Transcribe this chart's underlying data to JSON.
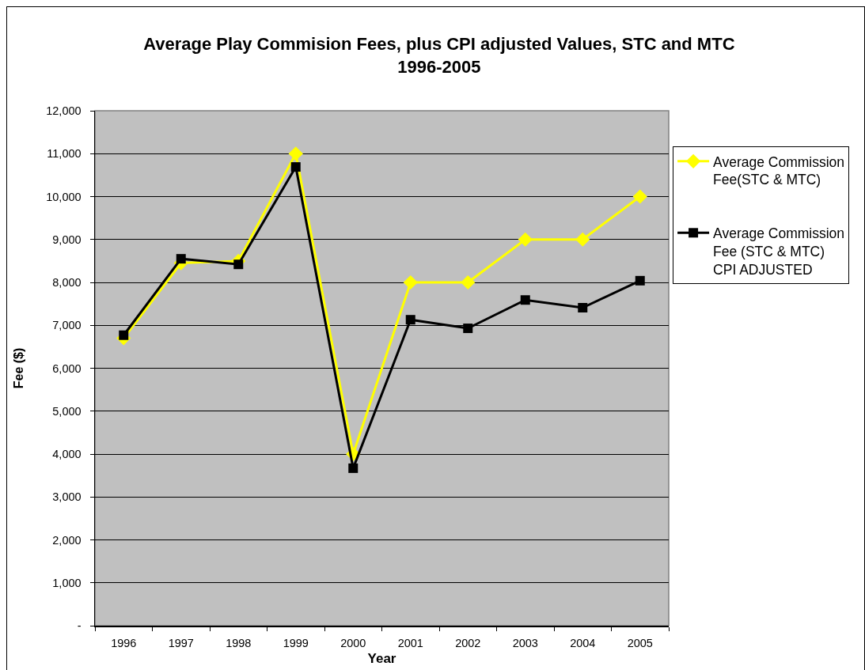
{
  "chart_data": {
    "type": "line",
    "title": "Average Play Commision Fees, plus CPI adjusted Values, STC and MTC\n1996-2005",
    "xlabel": "Year",
    "ylabel": "Fee ($)",
    "categories": [
      "1996",
      "1997",
      "1998",
      "1999",
      "2000",
      "2001",
      "2002",
      "2003",
      "2004",
      "2005"
    ],
    "series": [
      {
        "name": "Average Commission Fee(STC & MTC)",
        "color": "#ffff00",
        "marker": "diamond",
        "values": [
          6700,
          8450,
          8500,
          11000,
          4000,
          8000,
          8000,
          9000,
          9000,
          10000
        ]
      },
      {
        "name": "Average Commission Fee (STC & MTC) CPI ADJUSTED",
        "color": "#000000",
        "marker": "square",
        "values": [
          6770,
          8550,
          8420,
          10690,
          3670,
          7130,
          6930,
          7590,
          7410,
          8040
        ]
      }
    ],
    "ylim": [
      0,
      12000
    ],
    "yticks": [
      {
        "value": 0,
        "label": "-"
      },
      {
        "value": 1000,
        "label": "1,000"
      },
      {
        "value": 2000,
        "label": "2,000"
      },
      {
        "value": 3000,
        "label": "3,000"
      },
      {
        "value": 4000,
        "label": "4,000"
      },
      {
        "value": 5000,
        "label": "5,000"
      },
      {
        "value": 6000,
        "label": "6,000"
      },
      {
        "value": 7000,
        "label": "7,000"
      },
      {
        "value": 8000,
        "label": "8,000"
      },
      {
        "value": 9000,
        "label": "9,000"
      },
      {
        "value": 10000,
        "label": "10,000"
      },
      {
        "value": 11000,
        "label": "11,000"
      },
      {
        "value": 12000,
        "label": "12,000"
      }
    ],
    "grid": "y",
    "legend": "right",
    "line_style": "solid"
  }
}
